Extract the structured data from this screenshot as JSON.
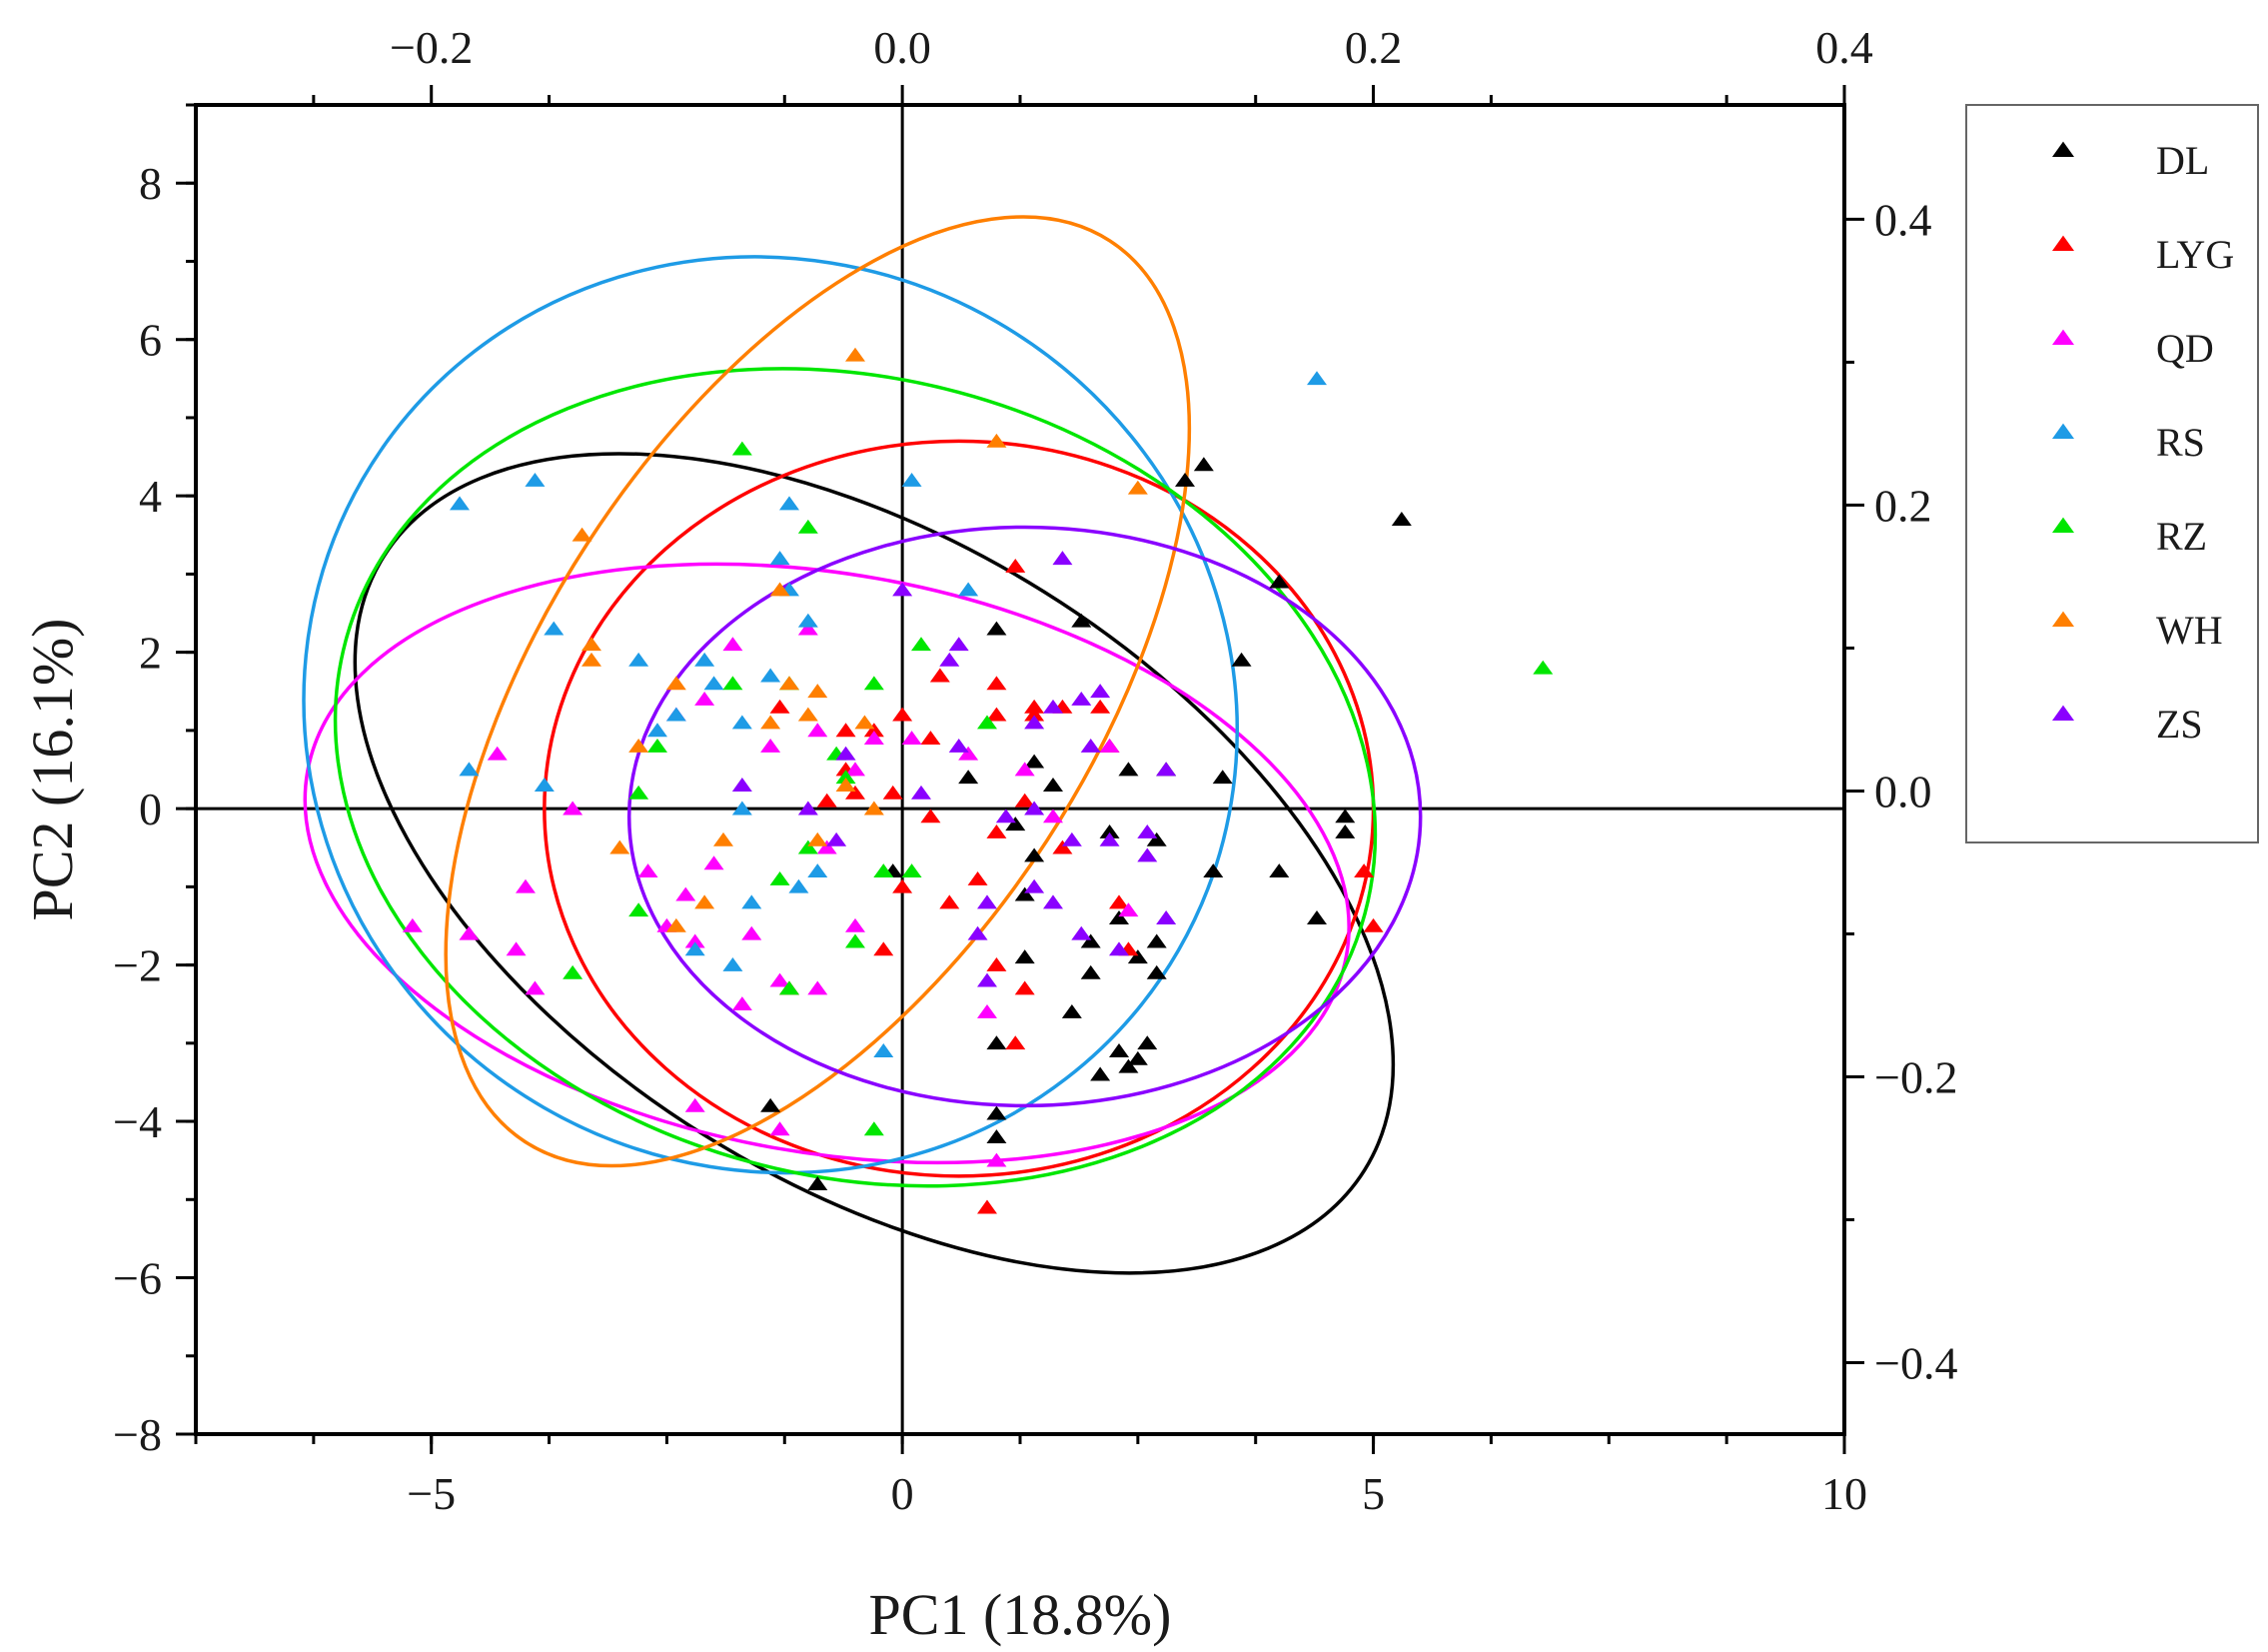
{
  "chart_data": {
    "type": "scatter",
    "title": "",
    "xlabel": "PC1 (18.8%)",
    "ylabel": "PC2 (16.1%)",
    "xlim": [
      -7.5,
      10
    ],
    "ylim": [
      -8,
      9
    ],
    "xticks": [
      -5,
      0,
      5,
      10
    ],
    "xtick_labels": [
      "−5",
      "0",
      "5",
      "10"
    ],
    "yticks": [
      -8,
      -6,
      -4,
      -2,
      0,
      2,
      4,
      6,
      8
    ],
    "ytick_labels": [
      "−8",
      "−6",
      "−4",
      "−2",
      "0",
      "2",
      "4",
      "6",
      "8"
    ],
    "top_axis": {
      "ticks": [
        -0.2,
        0.0,
        0.2,
        0.4
      ],
      "labels": [
        "−0.2",
        "0.0",
        "0.2",
        "0.4"
      ],
      "range": [
        -0.3,
        0.4
      ]
    },
    "right_axis": {
      "ticks": [
        0.4,
        0.2,
        0.0,
        -0.2,
        -0.4
      ],
      "labels": [
        "0.4",
        "0.2",
        "0.0",
        "−0.2",
        "−0.4"
      ],
      "range": [
        -0.45,
        0.48
      ]
    },
    "legend_position": "right",
    "series": [
      {
        "name": "DL",
        "color": "#000000",
        "points": [
          [
            3.0,
            4.2
          ],
          [
            3.2,
            4.4
          ],
          [
            5.3,
            3.7
          ],
          [
            4.0,
            2.9
          ],
          [
            3.6,
            1.9
          ],
          [
            1.9,
            2.4
          ],
          [
            1.0,
            2.3
          ],
          [
            0.7,
            0.4
          ],
          [
            1.4,
            0.6
          ],
          [
            1.6,
            0.3
          ],
          [
            2.4,
            0.5
          ],
          [
            2.8,
            0.5
          ],
          [
            3.4,
            0.4
          ],
          [
            2.2,
            -0.3
          ],
          [
            2.7,
            -0.4
          ],
          [
            3.3,
            -0.8
          ],
          [
            4.0,
            -0.8
          ],
          [
            4.7,
            -0.1
          ],
          [
            4.7,
            -0.3
          ],
          [
            4.4,
            -1.4
          ],
          [
            1.4,
            -0.6
          ],
          [
            1.3,
            -1.1
          ],
          [
            2.3,
            -1.4
          ],
          [
            2.7,
            -1.7
          ],
          [
            2.0,
            -1.7
          ],
          [
            1.3,
            -1.9
          ],
          [
            2.7,
            -2.1
          ],
          [
            2.5,
            -1.9
          ],
          [
            1.8,
            -2.6
          ],
          [
            2.0,
            -2.1
          ],
          [
            2.3,
            -3.1
          ],
          [
            2.4,
            -3.3
          ],
          [
            2.6,
            -3.0
          ],
          [
            2.5,
            -3.2
          ],
          [
            2.1,
            -3.4
          ],
          [
            1.0,
            -3.0
          ],
          [
            1.0,
            -3.9
          ],
          [
            1.0,
            -4.2
          ],
          [
            -1.4,
            -3.8
          ],
          [
            -0.9,
            -4.8
          ],
          [
            -0.1,
            -0.8
          ],
          [
            1.2,
            -0.2
          ]
        ],
        "ellipse": {
          "cx": -0.3,
          "cy": -0.7,
          "rx": 3.4,
          "ry": 7.4,
          "angle": -58
        }
      },
      {
        "name": "LYG",
        "color": "#ff0000",
        "points": [
          [
            1.2,
            3.1
          ],
          [
            0.4,
            1.7
          ],
          [
            1.0,
            1.6
          ],
          [
            1.4,
            1.3
          ],
          [
            1.0,
            1.2
          ],
          [
            0.0,
            1.2
          ],
          [
            -0.3,
            1.0
          ],
          [
            -0.6,
            0.5
          ],
          [
            -0.5,
            0.2
          ],
          [
            -0.8,
            0.1
          ],
          [
            -0.1,
            0.2
          ],
          [
            0.3,
            -0.1
          ],
          [
            1.3,
            0.1
          ],
          [
            1.0,
            -0.3
          ],
          [
            1.4,
            1.2
          ],
          [
            1.7,
            1.3
          ],
          [
            2.1,
            1.3
          ],
          [
            2.2,
            0.8
          ],
          [
            1.7,
            -0.5
          ],
          [
            0.8,
            -0.9
          ],
          [
            0.5,
            -1.2
          ],
          [
            0.0,
            -1.0
          ],
          [
            1.0,
            -2.0
          ],
          [
            1.3,
            -2.3
          ],
          [
            1.2,
            -3.0
          ],
          [
            2.4,
            -1.8
          ],
          [
            2.3,
            -1.2
          ],
          [
            -0.2,
            -1.8
          ],
          [
            -1.2,
            -2.3
          ],
          [
            -1.3,
            1.3
          ],
          [
            0.9,
            -5.1
          ],
          [
            4.9,
            -0.8
          ],
          [
            5.0,
            -1.5
          ],
          [
            0.3,
            0.9
          ],
          [
            -0.6,
            1.0
          ]
        ],
        "ellipse": {
          "cx": 0.6,
          "cy": 0.0,
          "rx": 4.4,
          "ry": 4.7,
          "angle": 0
        }
      },
      {
        "name": "QD",
        "color": "#ff00ff",
        "points": [
          [
            -5.2,
            -1.5
          ],
          [
            -4.6,
            -1.6
          ],
          [
            -4.1,
            -1.8
          ],
          [
            -3.9,
            -2.3
          ],
          [
            -4.0,
            -1.0
          ],
          [
            -4.3,
            0.7
          ],
          [
            -3.5,
            0.0
          ],
          [
            -2.5,
            -1.5
          ],
          [
            -2.3,
            -1.1
          ],
          [
            -2.2,
            -1.7
          ],
          [
            -2.0,
            -0.7
          ],
          [
            -1.7,
            -2.5
          ],
          [
            -1.6,
            -1.6
          ],
          [
            -1.3,
            -2.2
          ],
          [
            -2.4,
            1.2
          ],
          [
            -1.8,
            2.1
          ],
          [
            -1.0,
            2.3
          ],
          [
            -0.9,
            1.0
          ],
          [
            -0.5,
            0.5
          ],
          [
            -0.3,
            0.9
          ],
          [
            0.1,
            0.9
          ],
          [
            0.7,
            0.7
          ],
          [
            1.3,
            0.5
          ],
          [
            1.6,
            -0.1
          ],
          [
            -0.8,
            -0.5
          ],
          [
            -0.5,
            -1.5
          ],
          [
            0.9,
            -2.6
          ],
          [
            1.0,
            -4.5
          ],
          [
            -2.2,
            -3.8
          ],
          [
            -1.3,
            -4.1
          ],
          [
            -0.9,
            -2.3
          ],
          [
            -2.1,
            1.4
          ],
          [
            -1.4,
            0.8
          ],
          [
            -2.7,
            -0.8
          ],
          [
            2.4,
            -1.3
          ],
          [
            2.2,
            0.8
          ]
        ],
        "ellipse": {
          "cx": -0.8,
          "cy": -0.7,
          "rx": 5.6,
          "ry": 3.7,
          "angle": 10
        }
      },
      {
        "name": "RS",
        "color": "#1e9be6",
        "points": [
          [
            -4.7,
            3.9
          ],
          [
            -3.9,
            4.2
          ],
          [
            -1.2,
            3.9
          ],
          [
            0.1,
            4.2
          ],
          [
            -1.3,
            3.2
          ],
          [
            -1.2,
            2.8
          ],
          [
            -3.7,
            2.3
          ],
          [
            -2.8,
            1.9
          ],
          [
            -2.1,
            1.9
          ],
          [
            -2.0,
            1.6
          ],
          [
            -2.4,
            1.2
          ],
          [
            -2.6,
            1.0
          ],
          [
            -1.0,
            2.4
          ],
          [
            -1.4,
            1.7
          ],
          [
            -4.6,
            0.5
          ],
          [
            -3.8,
            0.3
          ],
          [
            -1.7,
            0.0
          ],
          [
            -1.6,
            -1.2
          ],
          [
            -1.8,
            -2.0
          ],
          [
            -2.2,
            -1.8
          ],
          [
            -0.9,
            -0.8
          ],
          [
            -0.2,
            -3.1
          ],
          [
            0.7,
            2.8
          ],
          [
            4.4,
            5.5
          ],
          [
            -1.1,
            -1.0
          ],
          [
            -1.7,
            1.1
          ]
        ],
        "ellipse": {
          "cx": -1.4,
          "cy": 1.2,
          "rx": 5.0,
          "ry": 5.8,
          "angle": 30
        }
      },
      {
        "name": "RZ",
        "color": "#00e600",
        "points": [
          [
            -1.7,
            4.6
          ],
          [
            -1.0,
            3.6
          ],
          [
            -1.2,
            1.6
          ],
          [
            -2.6,
            0.8
          ],
          [
            -2.8,
            0.2
          ],
          [
            -0.7,
            0.7
          ],
          [
            -0.3,
            1.6
          ],
          [
            0.2,
            2.1
          ],
          [
            0.9,
            1.1
          ],
          [
            -0.2,
            -0.8
          ],
          [
            0.1,
            -0.8
          ],
          [
            -0.5,
            -1.7
          ],
          [
            -1.0,
            -0.5
          ],
          [
            -1.3,
            -0.9
          ],
          [
            -1.2,
            -2.3
          ],
          [
            -2.8,
            -1.3
          ],
          [
            -3.5,
            -2.1
          ],
          [
            -0.3,
            -4.1
          ],
          [
            6.8,
            1.8
          ],
          [
            -0.6,
            0.4
          ],
          [
            -1.8,
            1.6
          ]
        ],
        "ellipse": {
          "cx": -0.5,
          "cy": 0.4,
          "rx": 5.6,
          "ry": 5.1,
          "angle": 15
        }
      },
      {
        "name": "WH",
        "color": "#ff7f00",
        "points": [
          [
            -0.5,
            5.8
          ],
          [
            1.0,
            4.7
          ],
          [
            2.5,
            4.1
          ],
          [
            -3.4,
            3.5
          ],
          [
            -1.3,
            2.8
          ],
          [
            -1.2,
            1.6
          ],
          [
            -0.9,
            1.5
          ],
          [
            -1.0,
            1.2
          ],
          [
            -0.4,
            1.1
          ],
          [
            -2.4,
            1.6
          ],
          [
            -3.3,
            2.1
          ],
          [
            -3.3,
            1.9
          ],
          [
            -2.8,
            0.8
          ],
          [
            -3.0,
            -0.5
          ],
          [
            -2.4,
            -1.5
          ],
          [
            -2.1,
            -1.2
          ],
          [
            -1.9,
            -0.4
          ],
          [
            -0.9,
            -0.4
          ],
          [
            -0.6,
            0.3
          ],
          [
            -0.3,
            0.0
          ],
          [
            -1.4,
            1.1
          ]
        ],
        "ellipse": {
          "cx": -0.9,
          "cy": 1.5,
          "rx": 5.7,
          "ry": 3.5,
          "angle": -57
        }
      },
      {
        "name": "ZS",
        "color": "#8a00ff",
        "points": [
          [
            1.7,
            3.2
          ],
          [
            0.0,
            2.8
          ],
          [
            0.6,
            2.1
          ],
          [
            0.5,
            1.9
          ],
          [
            1.6,
            1.3
          ],
          [
            1.4,
            1.1
          ],
          [
            2.1,
            1.5
          ],
          [
            2.0,
            0.8
          ],
          [
            0.6,
            0.8
          ],
          [
            -0.6,
            0.7
          ],
          [
            -1.7,
            0.3
          ],
          [
            -1.0,
            0.0
          ],
          [
            -0.7,
            -0.4
          ],
          [
            0.2,
            0.2
          ],
          [
            1.1,
            -0.1
          ],
          [
            1.4,
            0.0
          ],
          [
            1.8,
            -0.4
          ],
          [
            2.2,
            -0.4
          ],
          [
            2.6,
            -0.3
          ],
          [
            2.6,
            -0.6
          ],
          [
            2.8,
            -1.4
          ],
          [
            2.3,
            -1.8
          ],
          [
            1.9,
            -1.6
          ],
          [
            1.6,
            -1.2
          ],
          [
            1.4,
            -1.0
          ],
          [
            0.9,
            -1.2
          ],
          [
            0.8,
            -1.6
          ],
          [
            0.9,
            -2.2
          ],
          [
            2.8,
            0.5
          ],
          [
            1.9,
            1.4
          ]
        ],
        "ellipse": {
          "cx": 1.3,
          "cy": -0.1,
          "rx": 4.2,
          "ry": 3.7,
          "angle": 0
        }
      }
    ]
  }
}
